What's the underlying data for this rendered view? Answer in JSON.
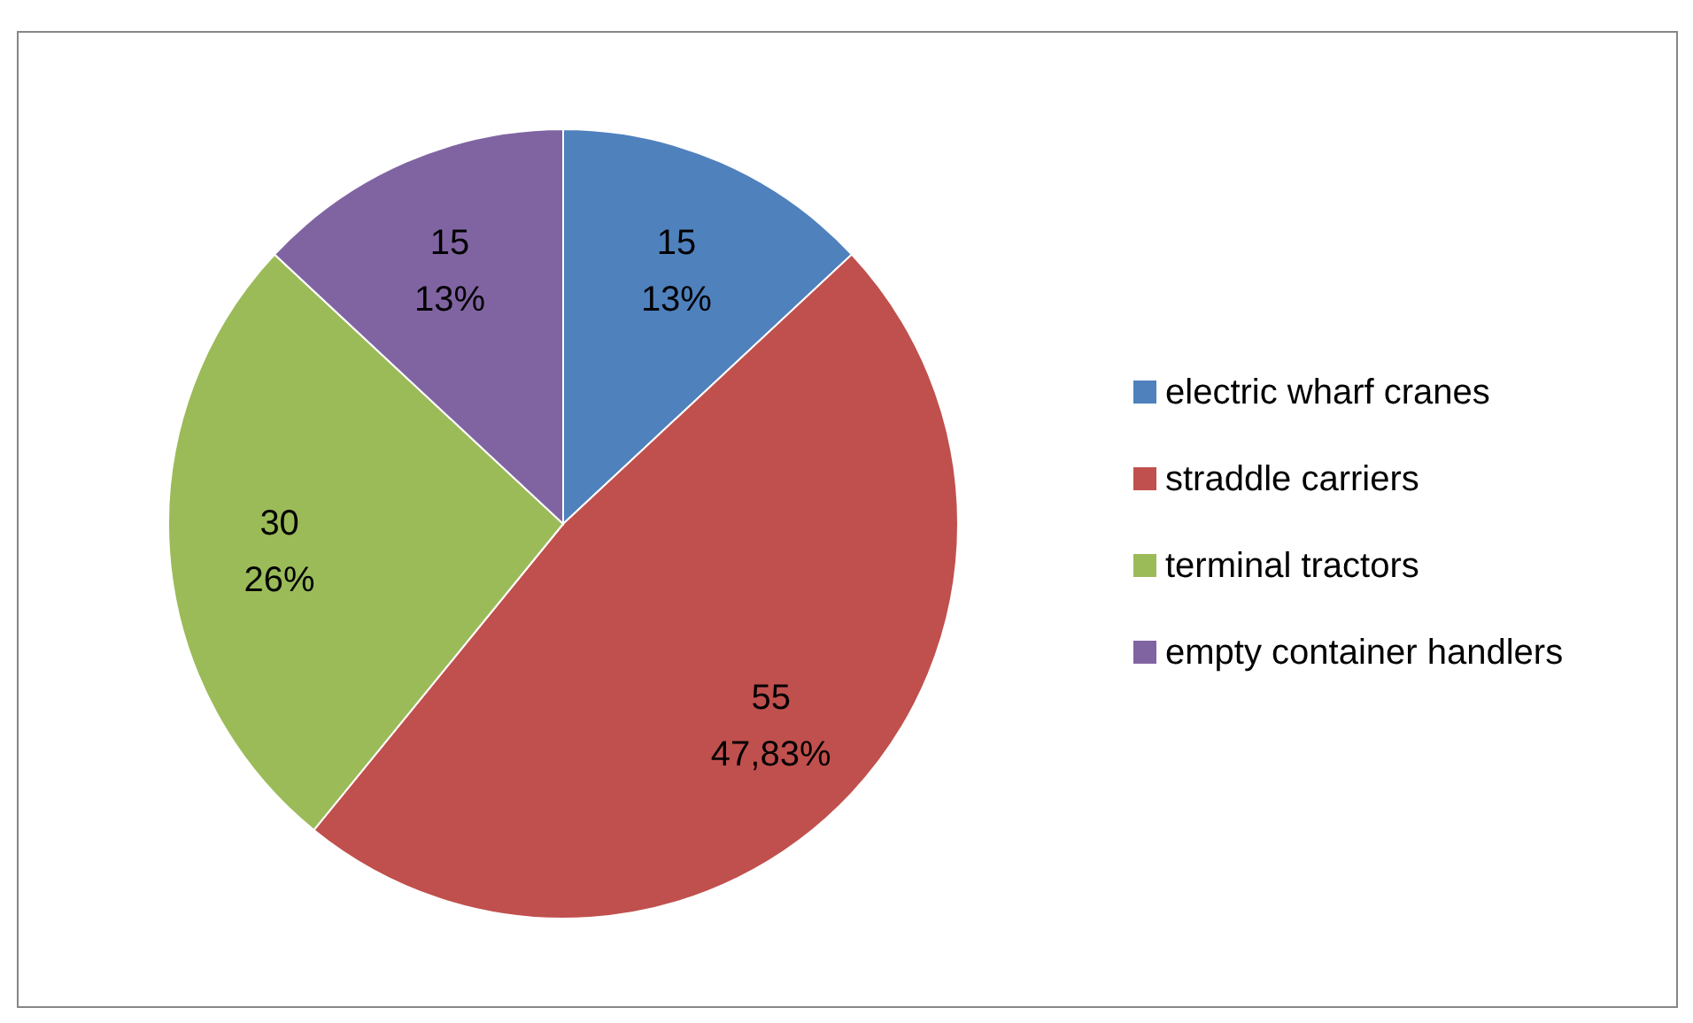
{
  "chart_data": {
    "type": "pie",
    "categories": [
      "electric wharf cranes",
      "straddle carriers",
      "terminal tractors",
      "empty container handlers"
    ],
    "values": [
      15,
      55,
      30,
      15
    ],
    "colors": [
      "#4f81bd",
      "#c0504d",
      "#9bbb59",
      "#8064a2"
    ],
    "value_labels": [
      "15\n13%",
      "55\n47,83%",
      "30\n26%",
      "15\n13%"
    ],
    "legend": "right"
  }
}
